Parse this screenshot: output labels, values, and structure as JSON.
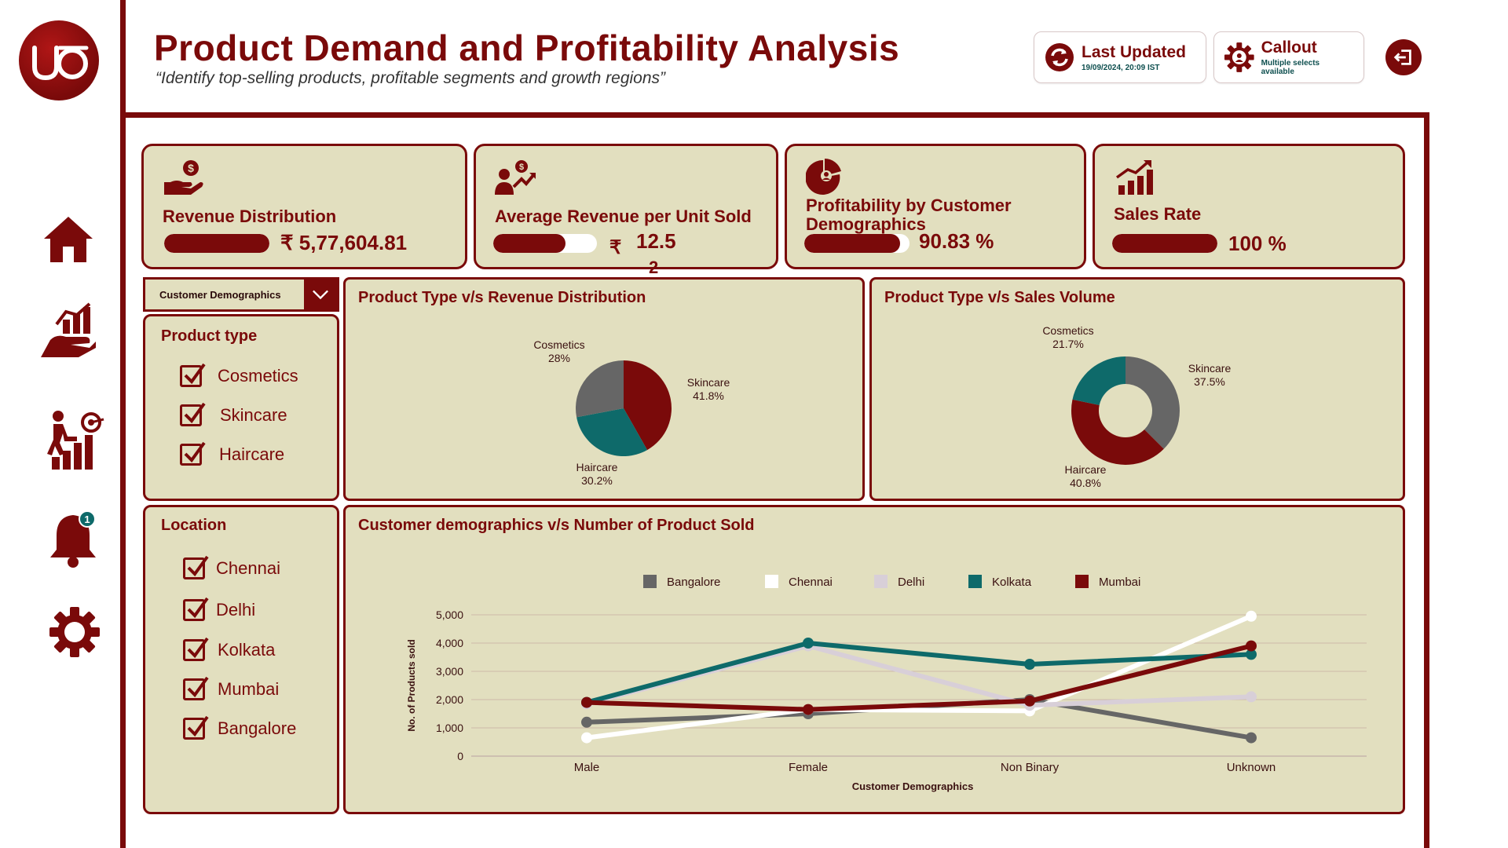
{
  "header": {
    "title": "Product Demand and Profitability Analysis",
    "subtitle": "“Identify top-selling products, profitable segments and growth regions”",
    "last_updated_label": "Last Updated",
    "last_updated_value": "19/09/2024, 20:09 IST",
    "callout_label": "Callout",
    "callout_sub": "Multiple selects available"
  },
  "logo_text": "uo",
  "sidebar": {
    "items": [
      {
        "name": "home-icon"
      },
      {
        "name": "hand-chart-icon"
      },
      {
        "name": "growth-target-icon"
      },
      {
        "name": "bell-icon",
        "badge": "1"
      },
      {
        "name": "gear-icon"
      }
    ]
  },
  "kpis": [
    {
      "label": "Revenue Distribution",
      "value": "₹ 5,77,604.81",
      "progress": 1.0
    },
    {
      "label": "Average Revenue per Unit Sold",
      "currency": "₹",
      "value": "12.5",
      "value_wrap": "2",
      "progress": 0.7
    },
    {
      "label": "Profitability by Customer Demographics",
      "value": "90.83 %",
      "progress": 0.9083
    },
    {
      "label": "Sales Rate",
      "value": "100  %",
      "progress": 1.0
    }
  ],
  "filters": {
    "dropdown_value": "Customer Demographics",
    "product_type": {
      "title": "Product type",
      "items": [
        {
          "label": "Cosmetics",
          "checked": true
        },
        {
          "label": "Skincare",
          "checked": true
        },
        {
          "label": "Haircare",
          "checked": true
        }
      ]
    },
    "location": {
      "title": "Location",
      "items": [
        {
          "label": "Chennai",
          "checked": true
        },
        {
          "label": "Delhi",
          "checked": true
        },
        {
          "label": "Kolkata",
          "checked": true
        },
        {
          "label": "Mumbai",
          "checked": true
        },
        {
          "label": "Bangalore",
          "checked": true
        }
      ]
    }
  },
  "colors": {
    "maroon": "#7a0a0a",
    "teal": "#0e6a6a",
    "grey": "#666666",
    "card": "#e2dfbf",
    "white": "#ffffff",
    "lavender": "#d8cfd8"
  },
  "chart_data": [
    {
      "type": "pie",
      "title": "Product Type v/s Revenue Distribution",
      "slices": [
        {
          "label": "Skincare",
          "pct_label": "41.8%",
          "value": 41.8,
          "color": "#7a0a0a"
        },
        {
          "label": "Haircare",
          "pct_label": "30.2%",
          "value": 30.2,
          "color": "#0e6a6a"
        },
        {
          "label": "Cosmetics",
          "pct_label": "28%",
          "value": 28.0,
          "color": "#666666"
        }
      ]
    },
    {
      "type": "pie",
      "donut": true,
      "title": "Product Type v/s Sales Volume",
      "slices": [
        {
          "label": "Skincare",
          "pct_label": "37.5%",
          "value": 37.5,
          "color": "#666666"
        },
        {
          "label": "Haircare",
          "pct_label": "40.8%",
          "value": 40.8,
          "color": "#7a0a0a"
        },
        {
          "label": "Cosmetics",
          "pct_label": "21.7%",
          "value": 21.7,
          "color": "#0e6a6a"
        }
      ]
    },
    {
      "type": "line",
      "title": "Customer demographics v/s Number of Product Sold",
      "xlabel": "Customer Demographics",
      "ylabel": "No. of Products sold",
      "categories": [
        "Male",
        "Female",
        "Non Binary",
        "Unknown"
      ],
      "ylim": [
        0,
        5000
      ],
      "yticks": [
        0,
        1000,
        2000,
        3000,
        4000,
        5000
      ],
      "ytick_labels": [
        "0",
        "1,000",
        "2,000",
        "3,000",
        "4,000",
        "5,000"
      ],
      "grid": true,
      "legend": "top-center",
      "series": [
        {
          "name": "Bangalore",
          "color": "#666666",
          "values": [
            1200,
            1500,
            2000,
            650
          ]
        },
        {
          "name": "Chennai",
          "color": "#ffffff",
          "values": [
            650,
            1650,
            1600,
            4950
          ]
        },
        {
          "name": "Delhi",
          "color": "#d8cfd8",
          "values": [
            1850,
            3900,
            1800,
            2100
          ]
        },
        {
          "name": "Kolkata",
          "color": "#0e6a6a",
          "values": [
            1900,
            4000,
            3250,
            3600
          ]
        },
        {
          "name": "Mumbai",
          "color": "#7a0a0a",
          "values": [
            1900,
            1650,
            1950,
            3900
          ]
        }
      ]
    }
  ]
}
